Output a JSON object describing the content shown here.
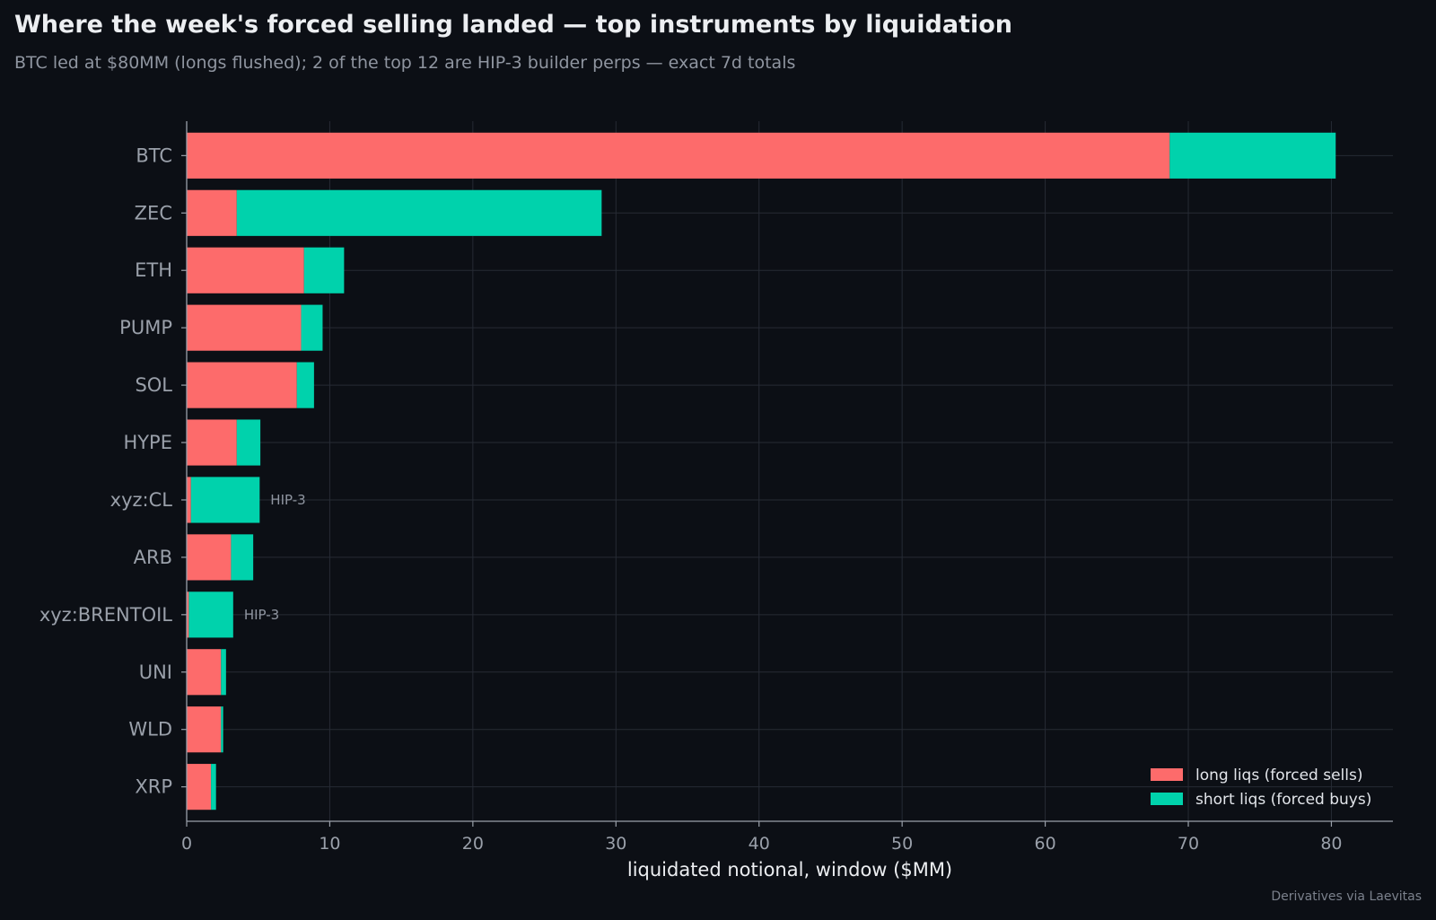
{
  "header": {
    "title": "Where the week's forced selling landed — top instruments by liquidation",
    "subtitle": "BTC led at $80MM (longs flushed); 2 of the top 12 are HIP-3 builder perps — exact 7d totals"
  },
  "footer": {
    "source": "Derivatives via Laevitas"
  },
  "colors": {
    "background": "#0c0f15",
    "long": "#fd6b6b",
    "short": "#00d2ac",
    "grid": "#262b34",
    "axis": "#9aa0aa",
    "label": "#9aa0aa",
    "annotation": "#8f95a0"
  },
  "chart_data": {
    "type": "bar",
    "orientation": "horizontal",
    "stacked": true,
    "categories": [
      "BTC",
      "ZEC",
      "ETH",
      "PUMP",
      "SOL",
      "HYPE",
      "xyz:CL",
      "ARB",
      "xyz:BRENTOIL",
      "UNI",
      "WLD",
      "XRP"
    ],
    "series": [
      {
        "name": "long liqs (forced sells)",
        "values": [
          68.7,
          3.5,
          8.2,
          8.0,
          7.7,
          3.5,
          0.3,
          3.1,
          0.15,
          2.4,
          2.4,
          1.7
        ]
      },
      {
        "name": "short liqs (forced buys)",
        "values": [
          11.6,
          25.5,
          2.8,
          1.5,
          1.2,
          1.65,
          4.8,
          1.55,
          3.1,
          0.35,
          0.15,
          0.35
        ]
      }
    ],
    "annotations": [
      {
        "category": "xyz:CL",
        "text": "HIP-3"
      },
      {
        "category": "xyz:BRENTOIL",
        "text": "HIP-3"
      }
    ],
    "xlabel": "liquidated notional, window ($MM)",
    "ylabel": "",
    "xlim": [
      0,
      84.3
    ],
    "xticks": [
      0,
      10,
      20,
      30,
      40,
      50,
      60,
      70,
      80
    ],
    "grid": true,
    "legend": "bottom-right"
  }
}
